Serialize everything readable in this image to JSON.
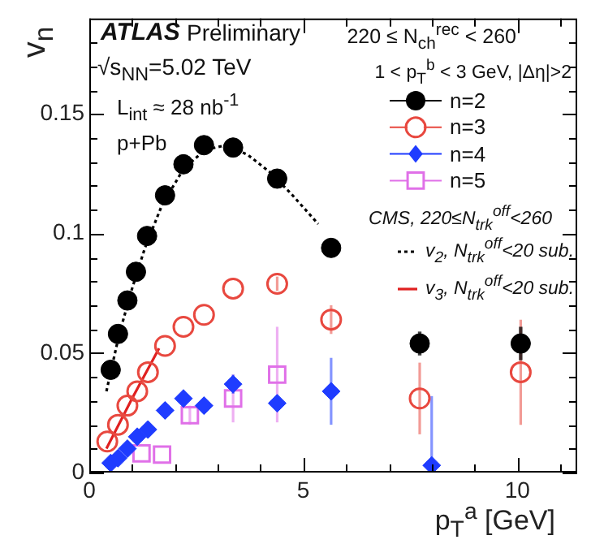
{
  "chart_data": {
    "type": "scatter",
    "xlabel": "p$_{T}$$^{a}$ [GeV]",
    "ylabel": "v$_{n}$",
    "annotations": [
      "ATLAS",
      "Preliminary",
      "√s$_{NN}$=5.02 TeV",
      "L$_{int}$ ≈ 28 nb$^{-1}$",
      "p+Pb",
      "220 ≤ N$_{ch}$$^{rec}$ < 260",
      "1 < p$_{T}$$^{b}$ < 3 GeV, |Δη|>2",
      "CMS, 220≤N$_{trk}$$^{off}$<260"
    ],
    "xlim": [
      0,
      11.4
    ],
    "xticks": [
      0,
      {
        "value": 1,
        "label": null
      },
      {
        "value": 2,
        "label": null
      },
      {
        "value": 3,
        "label": null
      },
      {
        "value": 4,
        "label": null
      },
      5,
      {
        "value": 6,
        "label": null
      },
      {
        "value": 7,
        "label": null
      },
      {
        "value": 8,
        "label": null
      },
      {
        "value": 9,
        "label": null
      },
      10,
      {
        "value": 11,
        "label": null
      }
    ],
    "ylim": [
      0,
      0.19
    ],
    "yticks": [
      0,
      {
        "value": 0.01,
        "label": null
      },
      {
        "value": 0.02,
        "label": null
      },
      {
        "value": 0.03,
        "label": null
      },
      {
        "value": 0.04,
        "label": null
      },
      0.05,
      {
        "value": 0.06,
        "label": null
      },
      {
        "value": 0.07,
        "label": null
      },
      {
        "value": 0.08,
        "label": null
      },
      {
        "value": 0.09,
        "label": null
      },
      0.1,
      {
        "value": 0.11,
        "label": null
      },
      {
        "value": 0.12,
        "label": null
      },
      {
        "value": 0.13,
        "label": null
      },
      {
        "value": 0.14,
        "label": null
      },
      0.15,
      {
        "value": 0.16,
        "label": null
      },
      {
        "value": 0.17,
        "label": null
      },
      {
        "value": 0.18,
        "label": null
      }
    ],
    "legend": "top right",
    "series": [
      {
        "name": "n=2",
        "type": "scatter",
        "marker": "circle",
        "color": "#000000",
        "x": [
          0.5,
          0.67,
          0.89,
          1.09,
          1.35,
          1.77,
          2.2,
          2.68,
          3.36,
          4.39,
          5.65,
          7.72,
          10.08
        ],
        "values": [
          0.043,
          0.058,
          0.072,
          0.084,
          0.099,
          0.116,
          0.129,
          0.137,
          0.136,
          0.123,
          0.094,
          0.054,
          0.054
        ],
        "errors": [
          null,
          null,
          null,
          null,
          null,
          null,
          null,
          null,
          null,
          null,
          null,
          0.005,
          0.007
        ]
      },
      {
        "name": "n=3",
        "type": "scatter",
        "marker": "circle",
        "color": "#e8483f",
        "x": [
          0.42,
          0.67,
          0.89,
          1.12,
          1.37,
          1.77,
          2.2,
          2.68,
          3.36,
          4.39,
          5.65,
          7.72,
          10.08
        ],
        "values": [
          0.013,
          0.02,
          0.028,
          0.034,
          0.042,
          0.053,
          0.061,
          0.066,
          0.077,
          0.079,
          0.064,
          0.031,
          0.042
        ],
        "errors": [
          null,
          null,
          null,
          null,
          null,
          null,
          null,
          null,
          null,
          0.003,
          0.006,
          0.015,
          0.022
        ]
      },
      {
        "name": "n=4",
        "type": "scatter",
        "marker": "diamond",
        "color": "#1f3cff",
        "x": [
          0.5,
          0.67,
          0.89,
          1.12,
          1.37,
          1.77,
          2.2,
          2.68,
          3.36,
          4.39,
          5.65,
          8.0
        ],
        "values": [
          0.004,
          0.006,
          0.01,
          0.015,
          0.018,
          0.026,
          0.031,
          0.028,
          0.037,
          0.029,
          0.034,
          0.003
        ],
        "errors": [
          null,
          null,
          null,
          null,
          null,
          null,
          null,
          null,
          0.004,
          null,
          0.014,
          [
            0,
            0.032
          ]
        ]
      },
      {
        "name": "n=5",
        "type": "scatter",
        "marker": "square",
        "color": "#e070e8",
        "x": [
          1.22,
          1.7,
          2.35,
          3.36,
          4.39
        ],
        "values": [
          0.008,
          0.0075,
          0.024,
          0.031,
          0.041
        ],
        "errors": [
          null,
          null,
          0.004,
          0.01,
          0.02
        ]
      },
      {
        "name": "v$_{2}$, N$_{trk}$$^{off}$<20 sub.",
        "type": "line",
        "marker": "none",
        "line_style": "dotted",
        "color": "#000000",
        "x": [
          0.4,
          0.7,
          1.0,
          1.3,
          1.7,
          2.2,
          2.7,
          3.2,
          3.7,
          4.2,
          4.7,
          5.35
        ],
        "values": [
          0.034,
          0.058,
          0.077,
          0.094,
          0.112,
          0.127,
          0.135,
          0.137,
          0.133,
          0.126,
          0.117,
          0.104
        ]
      },
      {
        "name": "v$_{3}$, N$_{trk}$$^{off}$<20 sub.",
        "type": "line",
        "marker": "none",
        "line_style": "solid",
        "color": "#e02020",
        "x": [
          0.4,
          1.0,
          1.63
        ],
        "values": [
          0.01,
          0.031,
          0.052
        ]
      }
    ]
  }
}
